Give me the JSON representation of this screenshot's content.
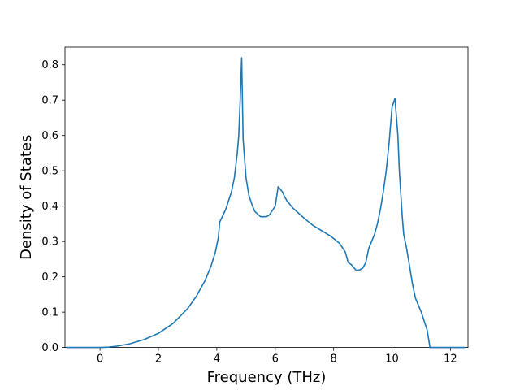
{
  "chart_data": {
    "type": "line",
    "xlabel": "Frequency (THz)",
    "ylabel": "Density of States",
    "xlim": [
      -1.2,
      12.6
    ],
    "ylim": [
      0.0,
      0.85
    ],
    "xticks": [
      0,
      2,
      4,
      6,
      8,
      10,
      12
    ],
    "yticks": [
      0.0,
      0.1,
      0.2,
      0.3,
      0.4,
      0.5,
      0.6,
      0.7,
      0.8
    ],
    "xtick_labels": [
      "0",
      "2",
      "4",
      "6",
      "8",
      "10",
      "12"
    ],
    "ytick_labels": [
      "0.0",
      "0.1",
      "0.2",
      "0.3",
      "0.4",
      "0.5",
      "0.6",
      "0.7",
      "0.8"
    ],
    "grid": false,
    "line_color": "#1f77b4",
    "series": [
      {
        "x": [
          -1.15,
          -0.5,
          0.0,
          0.3,
          0.6,
          1.0,
          1.5,
          2.0,
          2.5,
          3.0,
          3.3,
          3.6,
          3.8,
          3.95,
          4.05,
          4.1,
          4.3,
          4.5,
          4.6,
          4.7,
          4.75,
          4.8,
          4.85,
          4.9,
          5.0,
          5.1,
          5.2,
          5.3,
          5.5,
          5.7,
          5.8,
          6.0,
          6.1,
          6.2,
          6.25,
          6.3,
          6.4,
          6.6,
          6.8,
          7.0,
          7.3,
          7.6,
          7.9,
          8.2,
          8.4,
          8.5,
          8.6,
          8.7,
          8.75,
          8.8,
          8.9,
          9.0,
          9.1,
          9.2,
          9.3,
          9.35,
          9.4,
          9.5,
          9.6,
          9.7,
          9.8,
          9.9,
          10.0,
          10.1,
          10.2,
          10.25,
          10.3,
          10.35,
          10.4,
          10.5,
          10.6,
          10.7,
          10.8,
          11.0,
          11.2,
          11.3,
          11.35,
          11.4,
          11.5,
          12.0,
          12.5
        ],
        "y": [
          0.0,
          0.0,
          0.0,
          0.001,
          0.004,
          0.01,
          0.022,
          0.04,
          0.068,
          0.11,
          0.145,
          0.19,
          0.23,
          0.27,
          0.31,
          0.355,
          0.39,
          0.44,
          0.48,
          0.55,
          0.6,
          0.7,
          0.82,
          0.59,
          0.48,
          0.43,
          0.405,
          0.385,
          0.37,
          0.37,
          0.375,
          0.4,
          0.455,
          0.445,
          0.44,
          0.43,
          0.415,
          0.395,
          0.38,
          0.365,
          0.345,
          0.33,
          0.315,
          0.295,
          0.27,
          0.24,
          0.235,
          0.225,
          0.22,
          0.218,
          0.22,
          0.225,
          0.24,
          0.28,
          0.3,
          0.31,
          0.32,
          0.35,
          0.39,
          0.44,
          0.5,
          0.58,
          0.68,
          0.705,
          0.6,
          0.5,
          0.435,
          0.37,
          0.32,
          0.28,
          0.23,
          0.18,
          0.14,
          0.1,
          0.05,
          0.0,
          0.0,
          0.0,
          0.0,
          0.0,
          0.0
        ]
      }
    ]
  }
}
